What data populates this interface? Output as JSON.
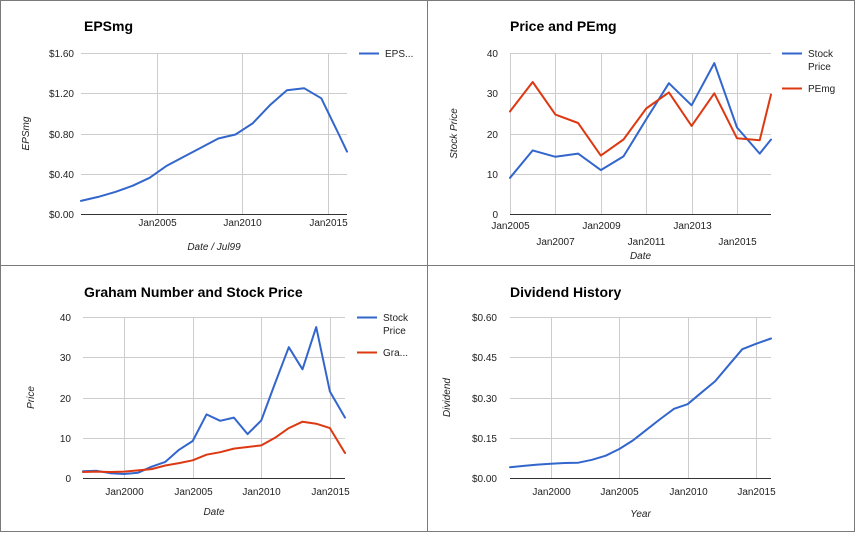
{
  "colors": {
    "blue": "#3366cc",
    "red": "#dc3912"
  },
  "chart_data": [
    {
      "type": "line",
      "title": "EPSmg",
      "xlabel": "Date / Jul99",
      "ylabel": "EPSmg",
      "ylim": [
        0,
        1.6
      ],
      "xlim": [
        2000.6,
        2016.1
      ],
      "y_ticks": [
        0,
        0.4,
        0.8,
        1.2,
        1.6
      ],
      "y_tick_labels": [
        "$0.00",
        "$0.40",
        "$0.80",
        "$1.20",
        "$1.60"
      ],
      "x_ticks": [
        2005,
        2010,
        2015
      ],
      "x_tick_labels": [
        "Jan2005",
        "Jan2010",
        "Jan2015"
      ],
      "legend": "right",
      "grid": true,
      "series": [
        {
          "name": "EPS...",
          "color": "#3366cc",
          "x": [
            2000.6,
            2001.6,
            2002.6,
            2003.6,
            2004.6,
            2005.6,
            2006.6,
            2007.6,
            2008.6,
            2009.6,
            2010.6,
            2011.6,
            2012.6,
            2013.6,
            2014.6,
            2015.6,
            2016.1
          ],
          "y": [
            0.13,
            0.17,
            0.22,
            0.28,
            0.36,
            0.48,
            0.57,
            0.66,
            0.75,
            0.79,
            0.9,
            1.08,
            1.23,
            1.25,
            1.15,
            0.8,
            0.62
          ]
        }
      ]
    },
    {
      "type": "line",
      "title": "Price and PEmg",
      "xlabel": "Date",
      "ylabel": "Stock Price",
      "ylim": [
        0,
        40
      ],
      "xlim": [
        2005,
        2016.5
      ],
      "y_ticks": [
        0,
        10,
        20,
        30,
        40
      ],
      "y_tick_labels": [
        "0",
        "10",
        "20",
        "30",
        "40"
      ],
      "x_ticks": [
        2005,
        2007,
        2009,
        2011,
        2013,
        2015
      ],
      "x_tick_labels": [
        "Jan2005",
        "Jan2007",
        "Jan2009",
        "Jan2011",
        "Jan2013",
        "Jan2015"
      ],
      "legend": "right",
      "grid": true,
      "series": [
        {
          "name": "Stock Price",
          "color": "#3366cc",
          "x": [
            2005,
            2006,
            2007,
            2008,
            2009,
            2010,
            2011,
            2012,
            2013,
            2014,
            2015,
            2016,
            2016.5
          ],
          "y": [
            9,
            15.8,
            14.2,
            15,
            10.9,
            14.3,
            23.5,
            32.5,
            27,
            37.5,
            21.5,
            15,
            18.5
          ]
        },
        {
          "name": "PEmg",
          "color": "#dc3912",
          "x": [
            2005,
            2006,
            2007,
            2008,
            2009,
            2010,
            2011,
            2012,
            2013,
            2014,
            2015,
            2016,
            2016.5
          ],
          "y": [
            25.5,
            32.8,
            24.7,
            22.6,
            14.5,
            18.5,
            26.2,
            30.2,
            21.9,
            30,
            18.8,
            18.3,
            29.7
          ]
        }
      ]
    },
    {
      "type": "line",
      "title": "Graham Number and Stock Price",
      "xlabel": "Date",
      "ylabel": "Price",
      "ylim": [
        0,
        40
      ],
      "xlim": [
        1997,
        2016.1
      ],
      "y_ticks": [
        0,
        10,
        20,
        30,
        40
      ],
      "y_tick_labels": [
        "0",
        "10",
        "20",
        "30",
        "40"
      ],
      "x_ticks": [
        2000,
        2005,
        2010,
        2015
      ],
      "x_tick_labels": [
        "Jan2000",
        "Jan2005",
        "Jan2010",
        "Jan2015"
      ],
      "legend": "right",
      "grid": true,
      "series": [
        {
          "name": "Stock Price",
          "color": "#3366cc",
          "x": [
            1997,
            1998,
            1999,
            2000,
            2001,
            2002,
            2003,
            2004,
            2005,
            2006,
            2007,
            2008,
            2009,
            2010,
            2011,
            2012,
            2013,
            2014,
            2015,
            2016.1
          ],
          "y": [
            1.7,
            1.8,
            1.2,
            1,
            1.3,
            2.8,
            4,
            7,
            9.2,
            15.8,
            14.2,
            15,
            10.9,
            14.3,
            23.5,
            32.5,
            27,
            37.5,
            21.5,
            15
          ]
        },
        {
          "name": "Gra...",
          "color": "#dc3912",
          "x": [
            1997,
            1998,
            1999,
            2000,
            2001,
            2002,
            2003,
            2004,
            2005,
            2006,
            2007,
            2008,
            2009,
            2010,
            2011,
            2012,
            2013,
            2014,
            2015,
            2016.1
          ],
          "y": [
            1.5,
            1.6,
            1.5,
            1.6,
            1.9,
            2.2,
            3.1,
            3.7,
            4.4,
            5.8,
            6.4,
            7.3,
            7.7,
            8.1,
            10,
            12.4,
            14,
            13.5,
            12.4,
            6.2
          ]
        }
      ]
    },
    {
      "type": "line",
      "title": "Dividend History",
      "xlabel": "Year",
      "ylabel": "Dividend",
      "ylim": [
        0,
        0.6
      ],
      "xlim": [
        1997,
        2016.1
      ],
      "y_ticks": [
        0,
        0.15,
        0.3,
        0.45,
        0.6
      ],
      "y_tick_labels": [
        "$0.00",
        "$0.15",
        "$0.30",
        "$0.45",
        "$0.60"
      ],
      "x_ticks": [
        2000,
        2005,
        2010,
        2015
      ],
      "x_tick_labels": [
        "Jan2000",
        "Jan2005",
        "Jan2010",
        "Jan2015"
      ],
      "legend": "none",
      "grid": true,
      "series": [
        {
          "name": "",
          "color": "#3366cc",
          "x": [
            1997,
            1998,
            1999,
            2000,
            2001,
            2002,
            2003,
            2004,
            2005,
            2006,
            2007,
            2008,
            2009,
            2010,
            2011,
            2012,
            2013,
            2014,
            2015,
            2016.1
          ],
          "y": [
            0.04,
            0.045,
            0.05,
            0.053,
            0.056,
            0.057,
            0.068,
            0.083,
            0.108,
            0.14,
            0.18,
            0.22,
            0.258,
            0.275,
            0.318,
            0.36,
            0.42,
            0.48,
            0.5,
            0.52
          ]
        }
      ]
    }
  ]
}
